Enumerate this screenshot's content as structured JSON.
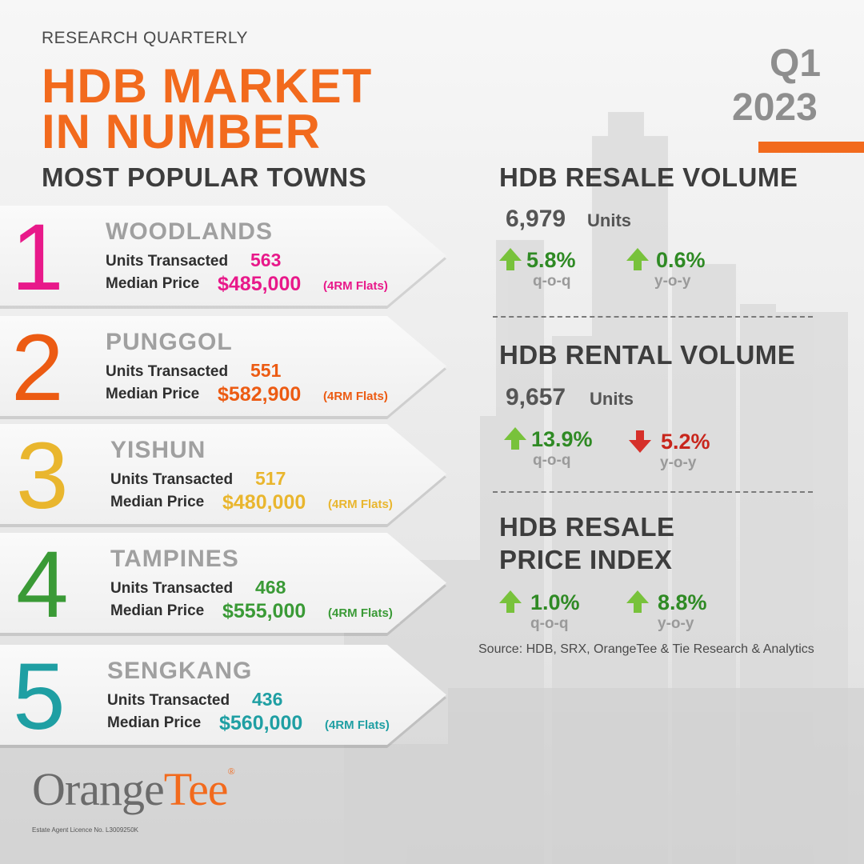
{
  "header": {
    "kicker": "RESEARCH QUARTERLY",
    "title_line1": "HDB MARKET",
    "title_line2": "IN NUMBER",
    "quarter": "Q1",
    "year": "2023"
  },
  "popular": {
    "heading": "MOST POPULAR TOWNS",
    "units_label": "Units Transacted",
    "price_label": "Median Price",
    "towns": [
      {
        "rank": "1",
        "name": "WOODLANDS",
        "units": "563",
        "price": "$485,000",
        "flat_type": "(4RM Flats)",
        "color": "#e8198a"
      },
      {
        "rank": "2",
        "name": "PUNGGOL",
        "units": "551",
        "price": "$582,900",
        "flat_type": "(4RM Flats)",
        "color": "#ec5b13"
      },
      {
        "rank": "3",
        "name": "YISHUN",
        "units": "517",
        "price": "$480,000",
        "flat_type": "(4RM Flats)",
        "color": "#e9b62e"
      },
      {
        "rank": "4",
        "name": "TAMPINES",
        "units": "468",
        "price": "$555,000",
        "flat_type": "(4RM Flats)",
        "color": "#3a9a36"
      },
      {
        "rank": "5",
        "name": "SENGKANG",
        "units": "436",
        "price": "$560,000",
        "flat_type": "(4RM Flats)",
        "color": "#1f9fa3"
      }
    ]
  },
  "stats": {
    "resale_volume": {
      "heading": "HDB RESALE VOLUME",
      "value": "6,979",
      "unit": "Units",
      "qoq": "5.8%",
      "qoq_label": "q-o-q",
      "qoq_dir": "up",
      "yoy": "0.6%",
      "yoy_label": "y-o-y",
      "yoy_dir": "up"
    },
    "rental_volume": {
      "heading": "HDB RENTAL VOLUME",
      "value": "9,657",
      "unit": "Units",
      "qoq": "13.9%",
      "qoq_label": "q-o-q",
      "qoq_dir": "up",
      "yoy": "5.2%",
      "yoy_label": "y-o-y",
      "yoy_dir": "down"
    },
    "price_index": {
      "heading_line1": "HDB RESALE",
      "heading_line2": "PRICE INDEX",
      "qoq": "1.0%",
      "qoq_label": "q-o-q",
      "qoq_dir": "up",
      "yoy": "8.8%",
      "yoy_label": "y-o-y",
      "yoy_dir": "up"
    },
    "source": "Source: HDB, SRX, OrangeTee & Tie Research & Analytics"
  },
  "colors": {
    "up": "#2f8a24",
    "up_arrow": "#78c23b",
    "down": "#c8261c",
    "down_arrow": "#d6302a",
    "accent": "#f26a1d"
  },
  "footer": {
    "logo_part1": "Orange",
    "logo_part2": "Tee",
    "logo_reg": "®",
    "licence": "Estate Agent Licence No. L3009250K"
  }
}
